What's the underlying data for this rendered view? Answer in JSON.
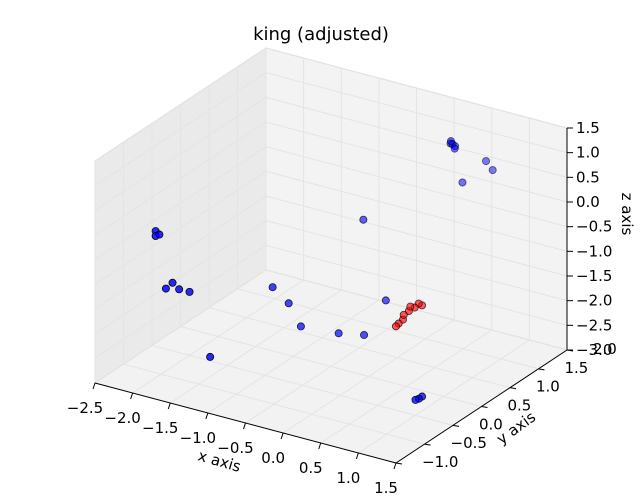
{
  "chart_data": {
    "type": "scatter",
    "projection": "3d",
    "title": "king (adjusted)",
    "xlabel": "x axis",
    "ylabel": "y axis",
    "zlabel": "z axis",
    "xlim": [
      -2.5,
      1.5
    ],
    "ylim": [
      -1.0,
      2.0
    ],
    "zlim": [
      -3.0,
      1.5
    ],
    "x_ticks": [
      "−2.5",
      "−2.0",
      "−1.5",
      "−1.0",
      "−0.5",
      "0.0",
      "0.5",
      "1.0",
      "1.5"
    ],
    "y_ticks": [
      "−1.0",
      "−0.5",
      "0.0",
      "0.5",
      "1.0",
      "1.5",
      "2.0"
    ],
    "z_ticks": [
      "−3.0",
      "−2.5",
      "−2.0",
      "−1.5",
      "−1.0",
      "−0.5",
      "0.0",
      "0.5",
      "1.0",
      "1.5"
    ],
    "grid": true,
    "pane_color": "#f2f2f2",
    "grid_color": "#e4e4e4",
    "series": [
      {
        "color": "#0000ff",
        "edge": "#000000",
        "points": [
          {
            "x": 0.2,
            "y": 1.68,
            "z": 0.95
          },
          {
            "x": 0.22,
            "y": 1.68,
            "z": 0.9
          },
          {
            "x": 0.24,
            "y": 1.7,
            "z": 0.85
          },
          {
            "x": 0.25,
            "y": 1.68,
            "z": 0.82
          },
          {
            "x": 0.18,
            "y": 1.7,
            "z": 0.88
          },
          {
            "x": 0.5,
            "y": 1.9,
            "z": 0.5
          },
          {
            "x": 0.55,
            "y": 1.95,
            "z": 0.3
          },
          {
            "x": 0.3,
            "y": 1.75,
            "z": 0.1
          },
          {
            "x": -0.6,
            "y": 1.2,
            "z": -0.6
          },
          {
            "x": -2.3,
            "y": -0.2,
            "z": -0.45
          },
          {
            "x": -2.3,
            "y": -0.2,
            "z": -0.55
          },
          {
            "x": -2.25,
            "y": -0.2,
            "z": -0.5
          },
          {
            "x": -2.0,
            "y": -0.3,
            "z": -1.3
          },
          {
            "x": -2.05,
            "y": -0.35,
            "z": -1.4
          },
          {
            "x": -1.95,
            "y": -0.25,
            "z": -1.45
          },
          {
            "x": -1.85,
            "y": -0.2,
            "z": -1.5
          },
          {
            "x": -1.2,
            "y": 0.4,
            "z": -1.6
          },
          {
            "x": -1.1,
            "y": 0.55,
            "z": -2.0
          },
          {
            "x": -1.5,
            "y": -0.3,
            "z": -2.6
          },
          {
            "x": -0.9,
            "y": 0.5,
            "z": -2.35
          },
          {
            "x": -0.55,
            "y": 0.7,
            "z": -2.5
          },
          {
            "x": -0.25,
            "y": 0.75,
            "z": -2.45
          },
          {
            "x": -0.15,
            "y": 1.0,
            "z": -1.9
          },
          {
            "x": 0.85,
            "y": 0.2,
            "z": -2.9
          },
          {
            "x": 0.88,
            "y": 0.22,
            "z": -2.88
          },
          {
            "x": 0.9,
            "y": 0.25,
            "z": -2.85
          }
        ]
      },
      {
        "color": "#ff0000",
        "edge": "#000000",
        "points": [
          {
            "x": 0.1,
            "y": 1.1,
            "z": -2.0
          },
          {
            "x": 0.12,
            "y": 1.15,
            "z": -2.05
          },
          {
            "x": 0.08,
            "y": 1.1,
            "z": -2.1
          },
          {
            "x": 0.05,
            "y": 1.05,
            "z": -2.15
          },
          {
            "x": 0.04,
            "y": 1.05,
            "z": -2.25
          },
          {
            "x": 0.02,
            "y": 1.0,
            "z": -2.3
          },
          {
            "x": 0.0,
            "y": 0.98,
            "z": -2.35
          },
          {
            "x": 0.15,
            "y": 1.18,
            "z": -1.98
          },
          {
            "x": 0.18,
            "y": 1.2,
            "z": -2.02
          }
        ]
      }
    ]
  }
}
